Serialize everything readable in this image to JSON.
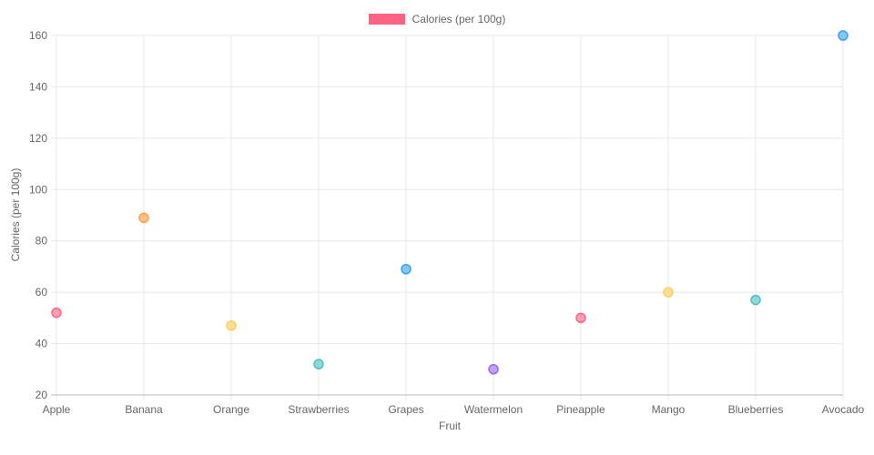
{
  "chart_data": {
    "type": "scatter",
    "title": "",
    "xlabel": "Fruit",
    "ylabel": "Calories (per 100g)",
    "categories": [
      "Apple",
      "Banana",
      "Orange",
      "Strawberries",
      "Grapes",
      "Watermelon",
      "Pineapple",
      "Mango",
      "Blueberries",
      "Avocado"
    ],
    "values": [
      52,
      89,
      47,
      32,
      69,
      30,
      50,
      60,
      57,
      160
    ],
    "point_colors": [
      "#FF6384",
      "#FF9F40",
      "#FFCD56",
      "#4BC0C0",
      "#36A2EB",
      "#9966FF",
      "#FF6384",
      "#FFCD56",
      "#4BC0C0",
      "#36A2EB"
    ],
    "ylim": [
      20,
      160
    ],
    "ytick_step": 20,
    "grid": true,
    "legend": {
      "position": "top",
      "label": "Calories (per 100g)",
      "color": "#FF6384"
    },
    "colors": {
      "background": "#ffffff",
      "grid": "#e8e8e8",
      "axis_line": "#b9b9b9",
      "tick_text": "#666666"
    }
  }
}
